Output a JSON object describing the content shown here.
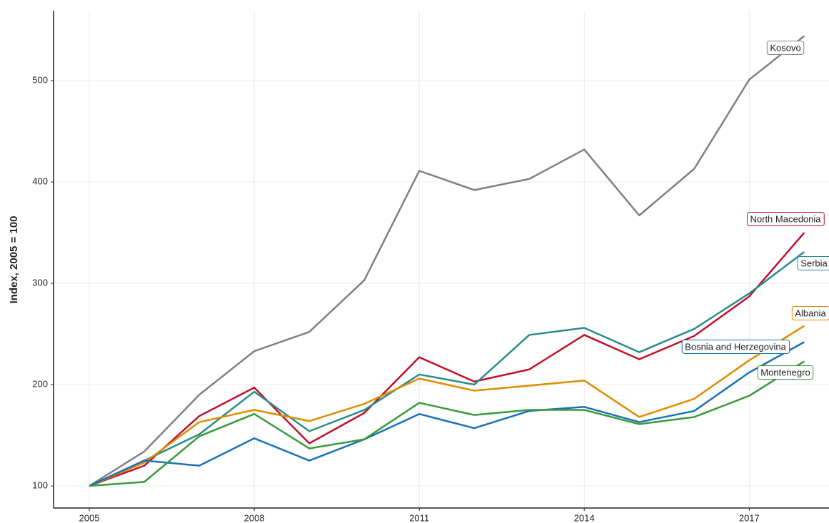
{
  "chart_data": {
    "type": "line",
    "y_label": "Index, 2005 = 100",
    "x": [
      2005,
      2006,
      2007,
      2008,
      2009,
      2010,
      2011,
      2012,
      2013,
      2014,
      2015,
      2016,
      2017,
      2018
    ],
    "xlim": [
      2004.35,
      2018.45
    ],
    "xticks": [
      2005,
      2008,
      2011,
      2014,
      2017
    ],
    "ylim": [
      78.2,
      569
    ],
    "yticks": [
      100,
      200,
      300,
      400,
      500
    ],
    "grid": true,
    "series": [
      {
        "name": "Kosovo",
        "color": "#808080",
        "values": [
          100,
          134,
          190,
          233,
          252,
          303,
          411,
          392,
          403,
          432,
          367,
          413,
          501,
          544
        ]
      },
      {
        "name": "North Macedonia",
        "color": "#c0102a",
        "values": [
          100,
          120,
          169,
          197,
          142,
          172,
          227,
          203,
          215,
          249,
          225,
          248,
          287,
          350
        ]
      },
      {
        "name": "Serbia",
        "color": "#2a8c8c",
        "values": [
          100,
          125,
          151,
          193,
          154,
          175,
          210,
          200,
          249,
          256,
          232,
          255,
          290,
          331
        ]
      },
      {
        "name": "Albania",
        "color": "#e08c00",
        "values": [
          100,
          123,
          163,
          175,
          164,
          181,
          206,
          194,
          199,
          204,
          168,
          186,
          224,
          258
        ]
      },
      {
        "name": "Bosnia and Herzegovina",
        "color": "#1a70b8",
        "values": [
          100,
          125,
          120,
          147,
          125,
          146,
          171,
          157,
          174,
          178,
          163,
          174,
          212,
          242
        ]
      },
      {
        "name": "Montenegro",
        "color": "#3a9a3a",
        "values": [
          100,
          104,
          149,
          171,
          137,
          146,
          182,
          170,
          175,
          175,
          161,
          168,
          189,
          223
        ]
      }
    ]
  }
}
